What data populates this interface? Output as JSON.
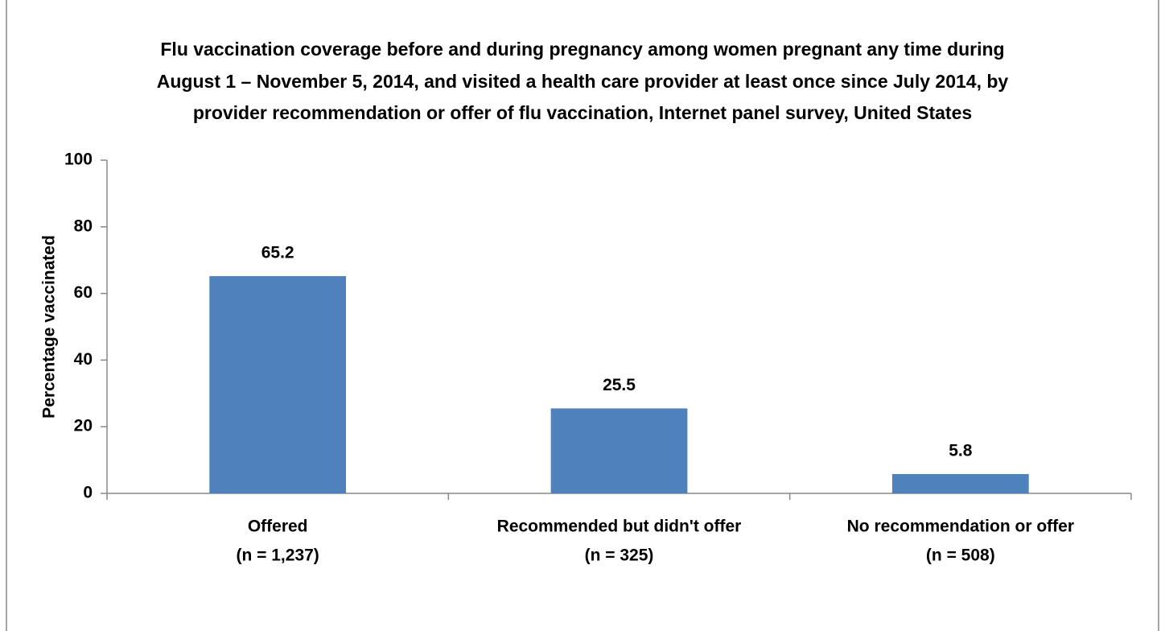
{
  "chart_data": {
    "type": "bar",
    "title": [
      "Flu vaccination coverage before and during pregnancy among women pregnant any time during",
      "August 1 – November 5, 2014, and visited a health care provider at least once since July 2014, by",
      "provider recommendation or offer of flu vaccination, Internet panel survey, United States"
    ],
    "y_label": "Percentage vaccinated",
    "categories": [
      [
        "Offered",
        "(n = 1,237)"
      ],
      [
        "Recommended but didn't offer",
        "(n = 325)"
      ],
      [
        "No recommendation or offer",
        "(n = 508)"
      ]
    ],
    "values": [
      65.2,
      25.5,
      5.8
    ],
    "color": "#4f81bd",
    "ylim": [
      0,
      100
    ],
    "yticks": [
      0,
      20,
      40,
      60,
      80,
      100
    ],
    "grid": false
  }
}
